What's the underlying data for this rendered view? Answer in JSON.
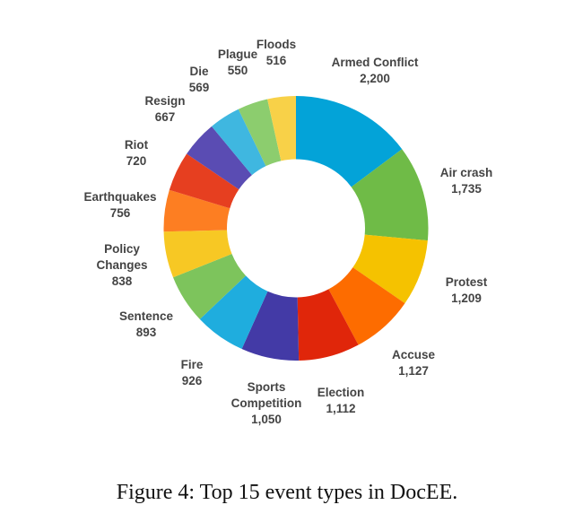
{
  "chart_data": {
    "type": "pie",
    "variant": "donut",
    "title": "",
    "categories": [
      "Armed Conflict",
      "Air crash",
      "Protest",
      "Accuse",
      "Election",
      "Sports Competition",
      "Fire",
      "Sentence",
      "Policy Changes",
      "Earthquakes",
      "Riot",
      "Resign",
      "Die",
      "Plague",
      "Floods"
    ],
    "values": [
      2200,
      1735,
      1209,
      1127,
      1112,
      1050,
      926,
      893,
      838,
      756,
      720,
      667,
      569,
      550,
      516
    ],
    "value_labels": [
      "2,200",
      "1,735",
      "1,209",
      "1,127",
      "1,112",
      "1,050",
      "926",
      "893",
      "838",
      "756",
      "720",
      "667",
      "569",
      "550",
      "516"
    ],
    "colors": [
      "#03a3d8",
      "#6fbb47",
      "#f5c200",
      "#fd6c00",
      "#e0260a",
      "#433aa6",
      "#1fadde",
      "#7dc45c",
      "#f7c824",
      "#fd7e22",
      "#e63f20",
      "#5a4cb3",
      "#3fb7e0",
      "#8ccd6e",
      "#f8d148"
    ],
    "start_angle": "12 o'clock, clockwise"
  },
  "caption": "Figure 4: Top 15 event types in DocEE."
}
